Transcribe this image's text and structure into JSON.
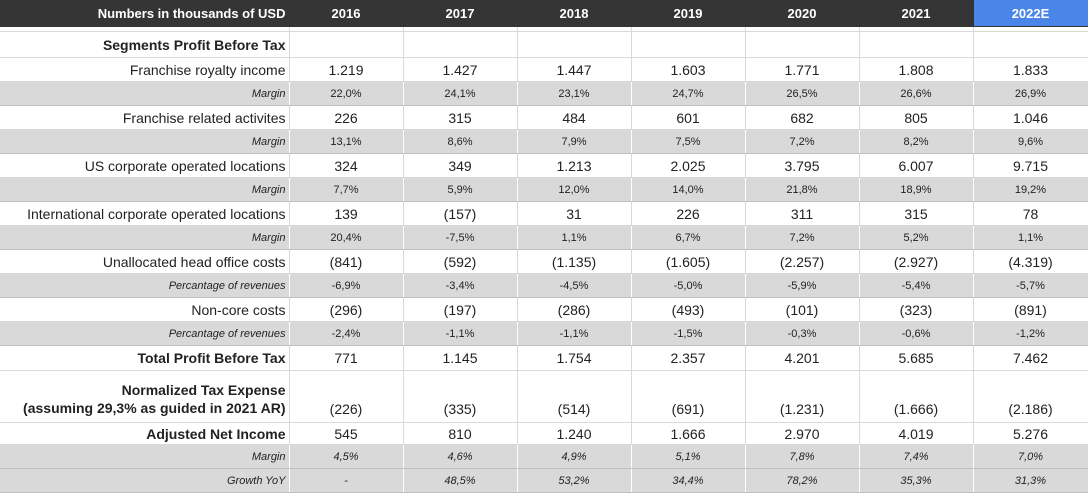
{
  "header": {
    "label": "Numbers in thousands of USD",
    "years": [
      "2016",
      "2017",
      "2018",
      "2019",
      "2020",
      "2021",
      "2022E"
    ]
  },
  "section_title": "Segments Profit Before Tax",
  "rows": [
    {
      "label": "Franchise royalty income",
      "values": [
        "1.219",
        "1.427",
        "1.447",
        "1.603",
        "1.771",
        "1.808",
        "1.833"
      ]
    },
    {
      "label": "Margin",
      "values": [
        "22,0%",
        "24,1%",
        "23,1%",
        "24,7%",
        "26,5%",
        "26,6%",
        "26,9%"
      ]
    },
    {
      "label": "Franchise related activites",
      "values": [
        "226",
        "315",
        "484",
        "601",
        "682",
        "805",
        "1.046"
      ]
    },
    {
      "label": "Margin",
      "values": [
        "13,1%",
        "8,6%",
        "7,9%",
        "7,5%",
        "7,2%",
        "8,2%",
        "9,6%"
      ]
    },
    {
      "label": "US corporate operated locations",
      "values": [
        "324",
        "349",
        "1.213",
        "2.025",
        "3.795",
        "6.007",
        "9.715"
      ]
    },
    {
      "label": "Margin",
      "values": [
        "7,7%",
        "5,9%",
        "12,0%",
        "14,0%",
        "21,8%",
        "18,9%",
        "19,2%"
      ]
    },
    {
      "label": "International corporate operated locations",
      "values": [
        "139",
        "(157)",
        "31",
        "226",
        "311",
        "315",
        "78"
      ]
    },
    {
      "label": "Margin",
      "values": [
        "20,4%",
        "-7,5%",
        "1,1%",
        "6,7%",
        "7,2%",
        "5,2%",
        "1,1%"
      ]
    },
    {
      "label": "Unallocated head office costs",
      "values": [
        "(841)",
        "(592)",
        "(1.135)",
        "(1.605)",
        "(2.257)",
        "(2.927)",
        "(4.319)"
      ]
    },
    {
      "label": "Percantage of revenues",
      "values": [
        "-6,9%",
        "-3,4%",
        "-4,5%",
        "-5,0%",
        "-5,9%",
        "-5,4%",
        "-5,7%"
      ]
    },
    {
      "label": "Non-core costs",
      "values": [
        "(296)",
        "(197)",
        "(286)",
        "(493)",
        "(101)",
        "(323)",
        "(891)"
      ]
    },
    {
      "label": "Percantage of revenues",
      "values": [
        "-2,4%",
        "-1,1%",
        "-1,1%",
        "-1,5%",
        "-0,3%",
        "-0,6%",
        "-1,2%"
      ]
    },
    {
      "label": "Total Profit Before Tax",
      "values": [
        "771",
        "1.145",
        "1.754",
        "2.357",
        "4.201",
        "5.685",
        "7.462"
      ]
    },
    {
      "label_line1": "Normalized Tax Expense",
      "label_line2": "(assuming 29,3% as guided in 2021 AR)",
      "values": [
        "(226)",
        "(335)",
        "(514)",
        "(691)",
        "(1.231)",
        "(1.666)",
        "(2.186)"
      ]
    },
    {
      "label": "Adjusted Net Income",
      "values": [
        "545",
        "810",
        "1.240",
        "1.666",
        "2.970",
        "4.019",
        "5.276"
      ]
    },
    {
      "label": "Margin",
      "values": [
        "4,5%",
        "4,6%",
        "4,9%",
        "5,1%",
        "7,8%",
        "7,4%",
        "7,0%"
      ]
    },
    {
      "label": "Growth YoY",
      "values": [
        "-",
        "48,5%",
        "53,2%",
        "34,4%",
        "78,2%",
        "35,3%",
        "31,3%"
      ]
    }
  ],
  "colors": {
    "header_bg": "#353535",
    "highlight_bg": "#4a86e8",
    "sub_row_bg": "#d9d9d9"
  }
}
